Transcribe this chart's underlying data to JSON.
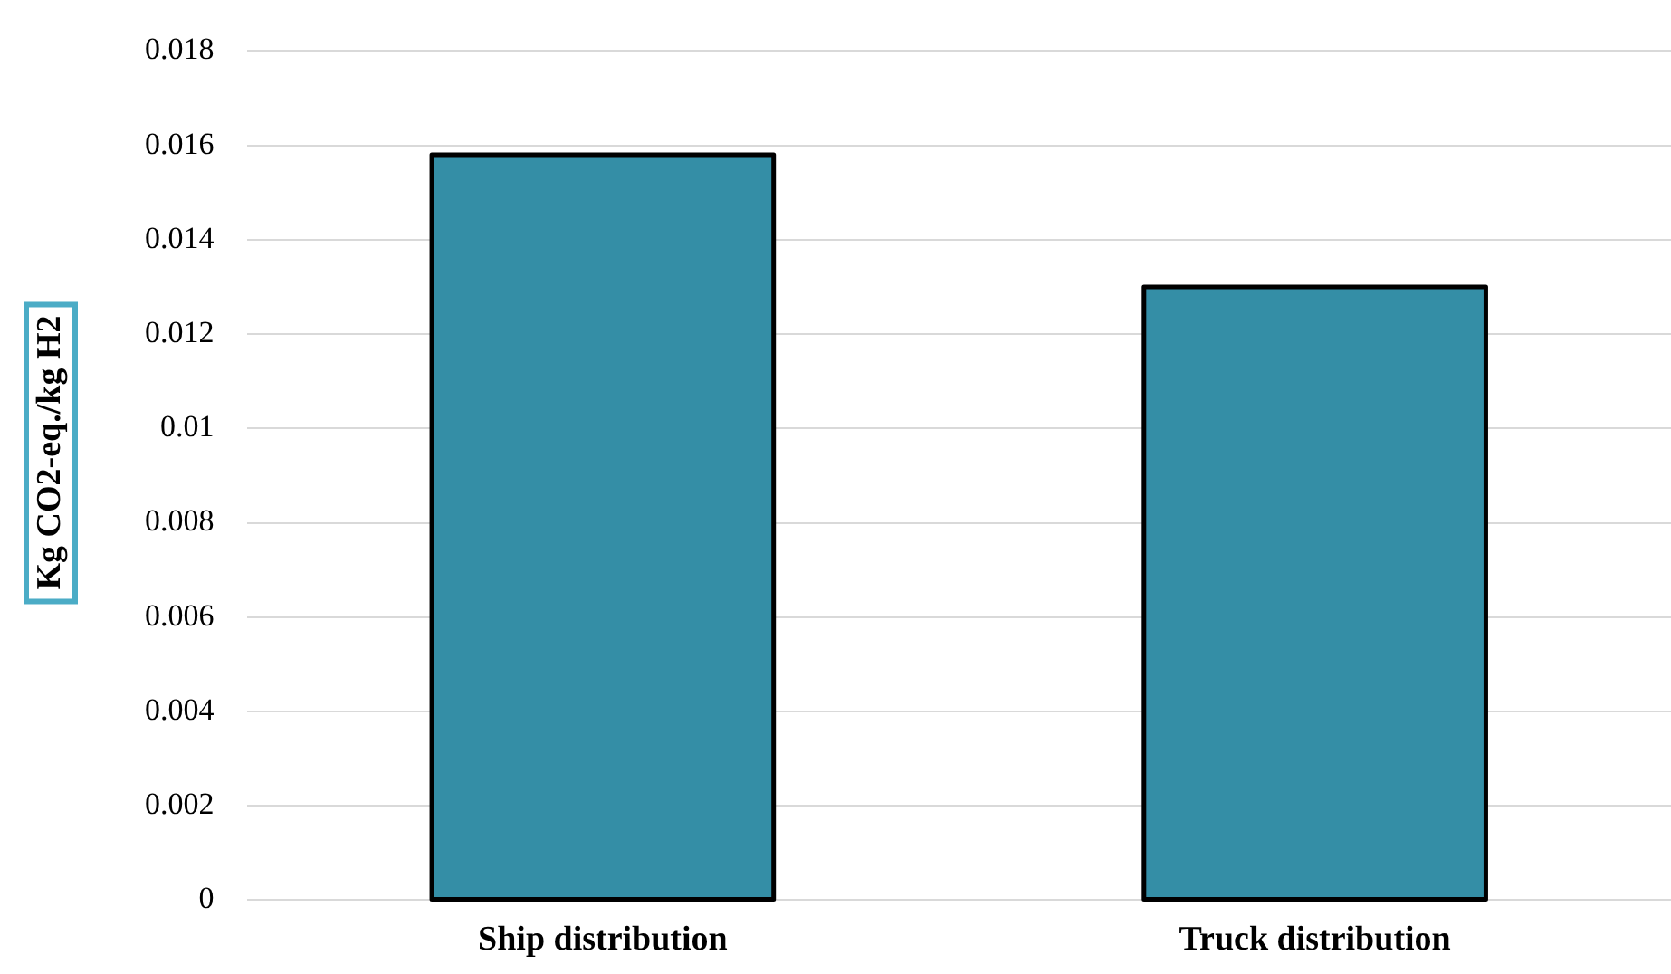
{
  "chart_data": {
    "type": "bar",
    "ylabel": "Kg CO2-eq./kg H2",
    "categories": [
      "Ship distribution",
      "Truck distribution"
    ],
    "values": [
      0.0158,
      0.013
    ],
    "color": "#348ea6",
    "ylim": [
      0,
      0.018
    ],
    "yticks": [
      0,
      0.002,
      0.004,
      0.006,
      0.008,
      0.01,
      0.012,
      0.014,
      0.016,
      0.018
    ],
    "grid": "y"
  }
}
